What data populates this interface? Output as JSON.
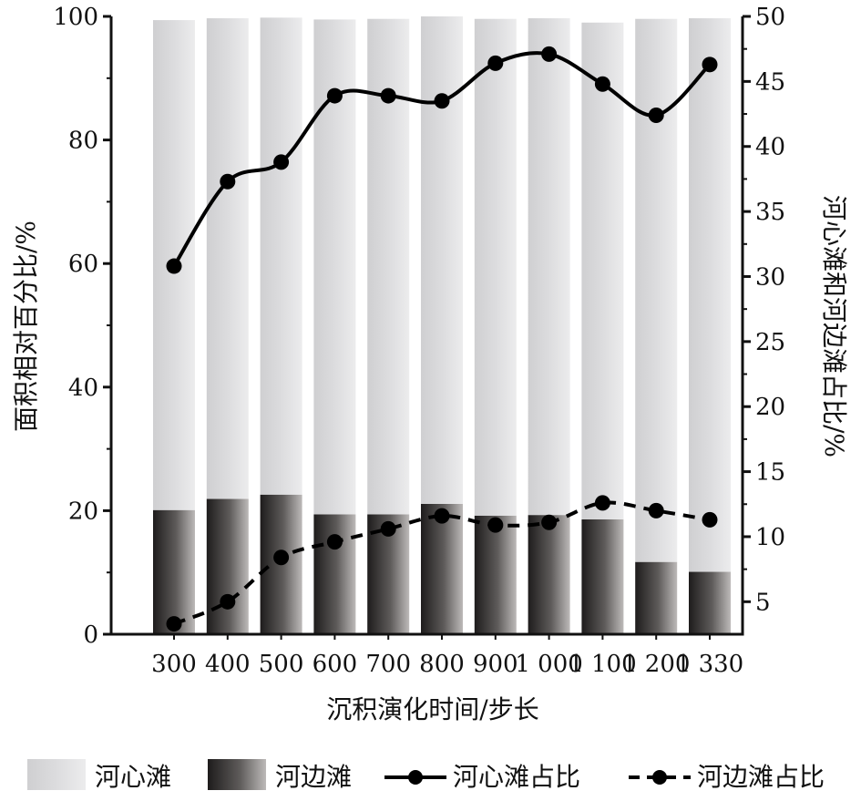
{
  "chart_data": {
    "type": "bar",
    "categories": [
      "300",
      "400",
      "500",
      "600",
      "700",
      "800",
      "900",
      "1 000",
      "1 100",
      "1 200",
      "1 330"
    ],
    "xlabel": "沉积演化时间/步长",
    "ylabel_left": "面积相对百分比/%",
    "ylabel_right": "河心滩和河边滩占比/%",
    "ylim_left": [
      0,
      100
    ],
    "ylim_right": [
      2.5,
      50
    ],
    "yticks_left": [
      0,
      20,
      40,
      60,
      80,
      100
    ],
    "yticks_right": [
      5,
      10,
      15,
      20,
      25,
      30,
      35,
      40,
      45,
      50
    ],
    "stacked": true,
    "grid": false,
    "legend_position": "bottom",
    "series": [
      {
        "name": "河心滩",
        "kind": "bar",
        "axis": "left",
        "fill": "light-gray-gradient",
        "values": [
          79.3,
          77.8,
          77.2,
          80.1,
          80.2,
          78.9,
          80.4,
          80.4,
          80.4,
          87.9,
          89.6
        ]
      },
      {
        "name": "河边滩",
        "kind": "bar",
        "axis": "left",
        "fill": "dark-gray-gradient",
        "values": [
          20.1,
          21.9,
          22.6,
          19.4,
          19.4,
          21.1,
          19.2,
          19.3,
          18.6,
          11.7,
          10.1
        ]
      },
      {
        "name": "河心滩占比",
        "kind": "line",
        "axis": "right",
        "style": "solid",
        "values": [
          30.8,
          37.3,
          38.8,
          43.9,
          43.9,
          43.5,
          46.4,
          47.1,
          44.8,
          42.4,
          46.3
        ]
      },
      {
        "name": "河边滩占比",
        "kind": "line",
        "axis": "right",
        "style": "dashed",
        "values": [
          3.3,
          5.0,
          8.4,
          9.6,
          10.6,
          11.6,
          10.9,
          11.1,
          12.6,
          12.0,
          11.3
        ]
      }
    ]
  },
  "colors": {
    "axis": "#111111",
    "line": "#000000",
    "light_bar_top": "#e9e9ea",
    "light_bar_bottom": "#d6d6d8",
    "dark_bar_left": "#1e1c1c",
    "dark_bar_right": "#b8b6b5"
  }
}
